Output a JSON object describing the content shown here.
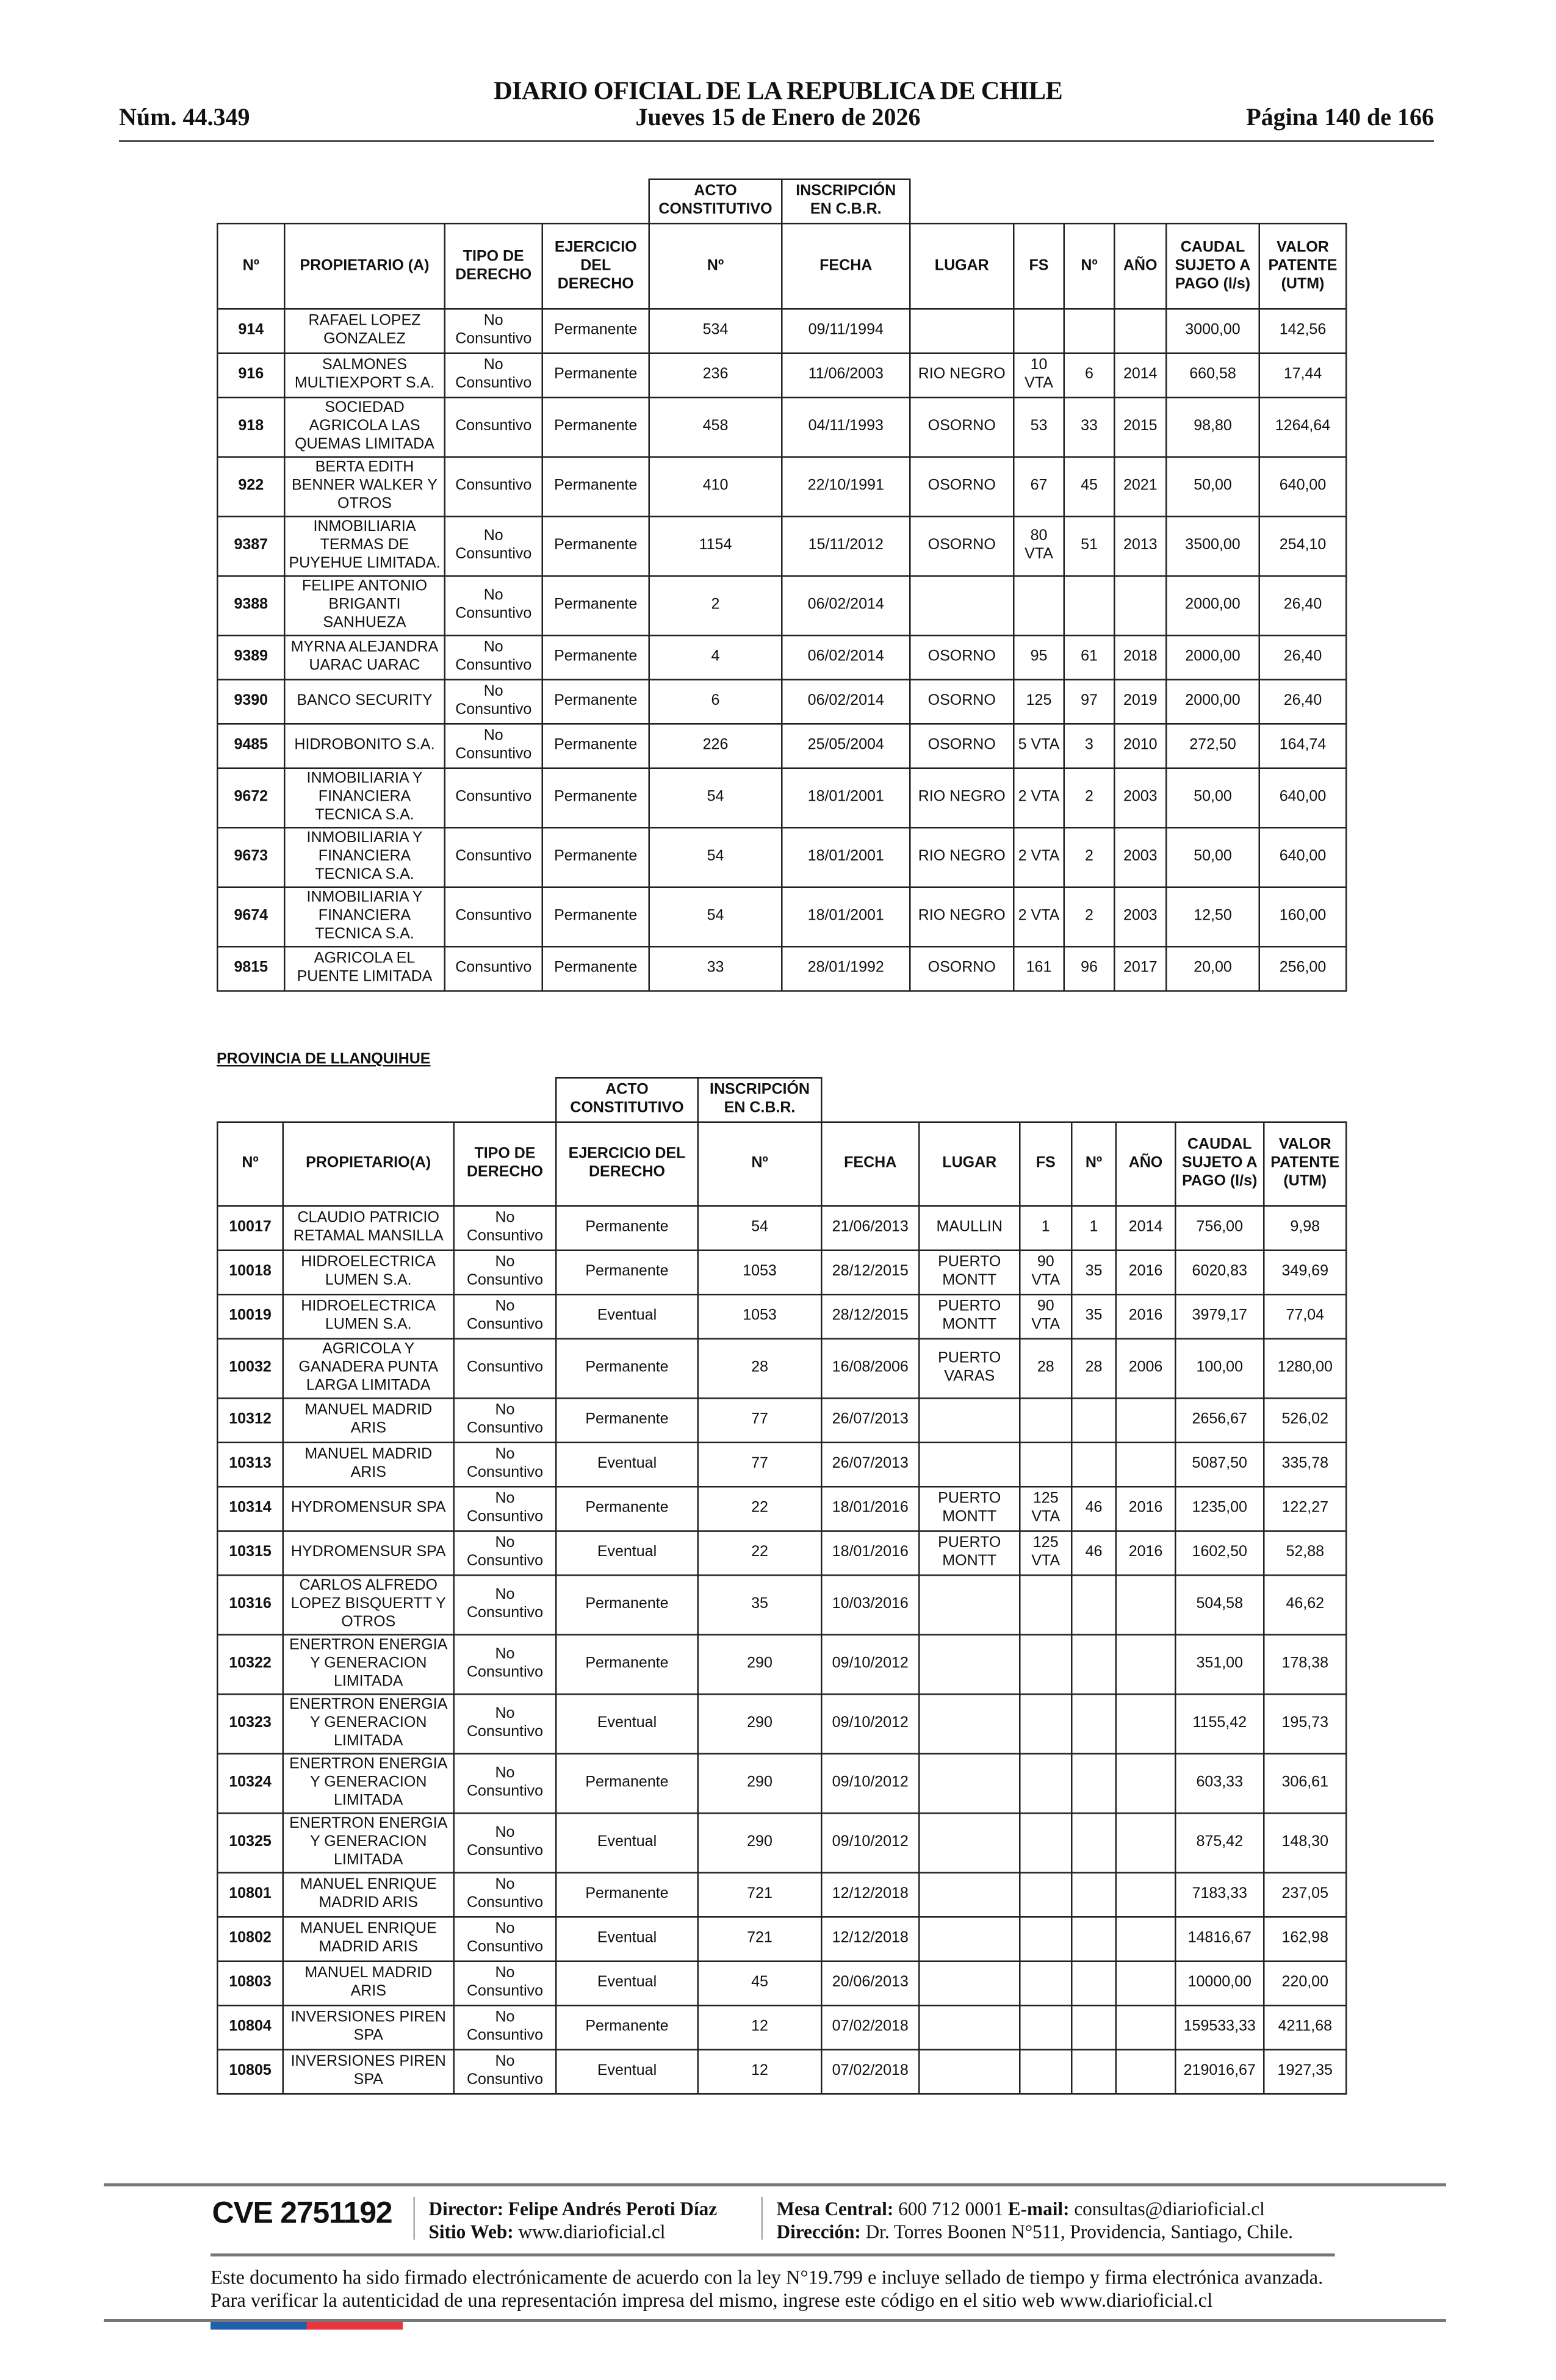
{
  "header": {
    "title": "DIARIO OFICIAL DE LA REPUBLICA DE CHILE",
    "issue": "Núm. 44.349",
    "date": "Jueves 15 de Enero de 2026",
    "page": "Página 140 de 166"
  },
  "table1": {
    "group_headers": [
      "ACTO CONSTITUTIVO",
      "INSCRIPCIÓN EN C.B.R."
    ],
    "columns": [
      "Nº",
      "PROPIETARIO (A)",
      "TIPO DE DERECHO",
      "EJERCICIO DEL DERECHO",
      "Nº",
      "FECHA",
      "LUGAR",
      "FS",
      "Nº",
      "AÑO",
      "CAUDAL SUJETO A PAGO (l/s)",
      "VALOR PATENTE (UTM)"
    ],
    "rows": [
      [
        "914",
        "RAFAEL LOPEZ GONZALEZ",
        "No Consuntivo",
        "Permanente",
        "534",
        "09/11/1994",
        "",
        "",
        "",
        "",
        "3000,00",
        "142,56"
      ],
      [
        "916",
        "SALMONES MULTIEXPORT S.A.",
        "No Consuntivo",
        "Permanente",
        "236",
        "11/06/2003",
        "RIO NEGRO",
        "10 VTA",
        "6",
        "2014",
        "660,58",
        "17,44"
      ],
      [
        "918",
        "SOCIEDAD AGRICOLA LAS QUEMAS LIMITADA",
        "Consuntivo",
        "Permanente",
        "458",
        "04/11/1993",
        "OSORNO",
        "53",
        "33",
        "2015",
        "98,80",
        "1264,64"
      ],
      [
        "922",
        "BERTA EDITH BENNER WALKER Y OTROS",
        "Consuntivo",
        "Permanente",
        "410",
        "22/10/1991",
        "OSORNO",
        "67",
        "45",
        "2021",
        "50,00",
        "640,00"
      ],
      [
        "9387",
        "INMOBILIARIA TERMAS DE PUYEHUE LIMITADA.",
        "No Consuntivo",
        "Permanente",
        "1154",
        "15/11/2012",
        "OSORNO",
        "80 VTA",
        "51",
        "2013",
        "3500,00",
        "254,10"
      ],
      [
        "9388",
        "FELIPE ANTONIO BRIGANTI SANHUEZA",
        "No Consuntivo",
        "Permanente",
        "2",
        "06/02/2014",
        "",
        "",
        "",
        "",
        "2000,00",
        "26,40"
      ],
      [
        "9389",
        "MYRNA ALEJANDRA UARAC UARAC",
        "No Consuntivo",
        "Permanente",
        "4",
        "06/02/2014",
        "OSORNO",
        "95",
        "61",
        "2018",
        "2000,00",
        "26,40"
      ],
      [
        "9390",
        "BANCO SECURITY",
        "No Consuntivo",
        "Permanente",
        "6",
        "06/02/2014",
        "OSORNO",
        "125",
        "97",
        "2019",
        "2000,00",
        "26,40"
      ],
      [
        "9485",
        "HIDROBONITO S.A.",
        "No Consuntivo",
        "Permanente",
        "226",
        "25/05/2004",
        "OSORNO",
        "5 VTA",
        "3",
        "2010",
        "272,50",
        "164,74"
      ],
      [
        "9672",
        "INMOBILIARIA Y FINANCIERA TECNICA S.A.",
        "Consuntivo",
        "Permanente",
        "54",
        "18/01/2001",
        "RIO NEGRO",
        "2 VTA",
        "2",
        "2003",
        "50,00",
        "640,00"
      ],
      [
        "9673",
        "INMOBILIARIA Y FINANCIERA TECNICA S.A.",
        "Consuntivo",
        "Permanente",
        "54",
        "18/01/2001",
        "RIO NEGRO",
        "2 VTA",
        "2",
        "2003",
        "50,00",
        "640,00"
      ],
      [
        "9674",
        "INMOBILIARIA Y FINANCIERA TECNICA S.A.",
        "Consuntivo",
        "Permanente",
        "54",
        "18/01/2001",
        "RIO NEGRO",
        "2 VTA",
        "2",
        "2003",
        "12,50",
        "160,00"
      ],
      [
        "9815",
        "AGRICOLA EL PUENTE LIMITADA",
        "Consuntivo",
        "Permanente",
        "33",
        "28/01/1992",
        "OSORNO",
        "161",
        "96",
        "2017",
        "20,00",
        "256,00"
      ]
    ]
  },
  "section_title": "PROVINCIA DE LLANQUIHUE",
  "table2": {
    "group_headers": [
      "ACTO CONSTITUTIVO",
      "INSCRIPCIÓN EN C.B.R."
    ],
    "columns": [
      "Nº",
      "PROPIETARIO(A)",
      "TIPO DE DERECHO",
      "EJERCICIO DEL DERECHO",
      "Nº",
      "FECHA",
      "LUGAR",
      "FS",
      "Nº",
      "AÑO",
      "CAUDAL SUJETO A PAGO (l/s)",
      "VALOR PATENTE (UTM)"
    ],
    "rows": [
      [
        "10017",
        "CLAUDIO PATRICIO RETAMAL MANSILLA",
        "No Consuntivo",
        "Permanente",
        "54",
        "21/06/2013",
        "MAULLIN",
        "1",
        "1",
        "2014",
        "756,00",
        "9,98"
      ],
      [
        "10018",
        "HIDROELECTRICA LUMEN S.A.",
        "No Consuntivo",
        "Permanente",
        "1053",
        "28/12/2015",
        "PUERTO MONTT",
        "90 VTA",
        "35",
        "2016",
        "6020,83",
        "349,69"
      ],
      [
        "10019",
        "HIDROELECTRICA LUMEN S.A.",
        "No Consuntivo",
        "Eventual",
        "1053",
        "28/12/2015",
        "PUERTO MONTT",
        "90 VTA",
        "35",
        "2016",
        "3979,17",
        "77,04"
      ],
      [
        "10032",
        "AGRICOLA Y GANADERA PUNTA LARGA LIMITADA",
        "Consuntivo",
        "Permanente",
        "28",
        "16/08/2006",
        "PUERTO VARAS",
        "28",
        "28",
        "2006",
        "100,00",
        "1280,00"
      ],
      [
        "10312",
        "MANUEL MADRID ARIS",
        "No Consuntivo",
        "Permanente",
        "77",
        "26/07/2013",
        "",
        "",
        "",
        "",
        "2656,67",
        "526,02"
      ],
      [
        "10313",
        "MANUEL MADRID ARIS",
        "No Consuntivo",
        "Eventual",
        "77",
        "26/07/2013",
        "",
        "",
        "",
        "",
        "5087,50",
        "335,78"
      ],
      [
        "10314",
        "HYDROMENSUR SPA",
        "No Consuntivo",
        "Permanente",
        "22",
        "18/01/2016",
        "PUERTO MONTT",
        "125 VTA",
        "46",
        "2016",
        "1235,00",
        "122,27"
      ],
      [
        "10315",
        "HYDROMENSUR SPA",
        "No Consuntivo",
        "Eventual",
        "22",
        "18/01/2016",
        "PUERTO MONTT",
        "125 VTA",
        "46",
        "2016",
        "1602,50",
        "52,88"
      ],
      [
        "10316",
        "CARLOS ALFREDO LOPEZ BISQUERTT Y OTROS",
        "No Consuntivo",
        "Permanente",
        "35",
        "10/03/2016",
        "",
        "",
        "",
        "",
        "504,58",
        "46,62"
      ],
      [
        "10322",
        "ENERTRON ENERGIA Y GENERACION LIMITADA",
        "No Consuntivo",
        "Permanente",
        "290",
        "09/10/2012",
        "",
        "",
        "",
        "",
        "351,00",
        "178,38"
      ],
      [
        "10323",
        "ENERTRON ENERGIA Y GENERACION LIMITADA",
        "No Consuntivo",
        "Eventual",
        "290",
        "09/10/2012",
        "",
        "",
        "",
        "",
        "1155,42",
        "195,73"
      ],
      [
        "10324",
        "ENERTRON ENERGIA Y GENERACION LIMITADA",
        "No Consuntivo",
        "Permanente",
        "290",
        "09/10/2012",
        "",
        "",
        "",
        "",
        "603,33",
        "306,61"
      ],
      [
        "10325",
        "ENERTRON ENERGIA Y GENERACION LIMITADA",
        "No Consuntivo",
        "Eventual",
        "290",
        "09/10/2012",
        "",
        "",
        "",
        "",
        "875,42",
        "148,30"
      ],
      [
        "10801",
        "MANUEL ENRIQUE MADRID ARIS",
        "No Consuntivo",
        "Permanente",
        "721",
        "12/12/2018",
        "",
        "",
        "",
        "",
        "7183,33",
        "237,05"
      ],
      [
        "10802",
        "MANUEL ENRIQUE MADRID ARIS",
        "No Consuntivo",
        "Eventual",
        "721",
        "12/12/2018",
        "",
        "",
        "",
        "",
        "14816,67",
        "162,98"
      ],
      [
        "10803",
        "MANUEL MADRID ARIS",
        "No Consuntivo",
        "Eventual",
        "45",
        "20/06/2013",
        "",
        "",
        "",
        "",
        "10000,00",
        "220,00"
      ],
      [
        "10804",
        "INVERSIONES PIREN SPA",
        "No Consuntivo",
        "Permanente",
        "12",
        "07/02/2018",
        "",
        "",
        "",
        "",
        "159533,33",
        "4211,68"
      ],
      [
        "10805",
        "INVERSIONES PIREN SPA",
        "No Consuntivo",
        "Eventual",
        "12",
        "07/02/2018",
        "",
        "",
        "",
        "",
        "219016,67",
        "1927,35"
      ]
    ]
  },
  "footer": {
    "cve": "CVE 2751192",
    "director_label": "Director:",
    "director": "Felipe Andrés Peroti Díaz",
    "web_label": "Sitio Web:",
    "web": "www.diarioficial.cl",
    "phone_label": "Mesa Central:",
    "phone": "600 712 0001",
    "email_label": "E-mail:",
    "email": "consultas@diarioficial.cl",
    "address_label": "Dirección:",
    "address": "Dr. Torres Boonen N°511, Providencia, Santiago, Chile.",
    "legal": "Este documento ha sido firmado electrónicamente de acuerdo con la ley N°19.799 e incluye sellado de tiempo y firma electrónica avanzada. Para verificar la autenticidad de una representación impresa del mismo, ingrese este código en el sitio web www.diarioficial.cl",
    "flag_colors": [
      "#1f5fae",
      "#e8353f"
    ]
  }
}
